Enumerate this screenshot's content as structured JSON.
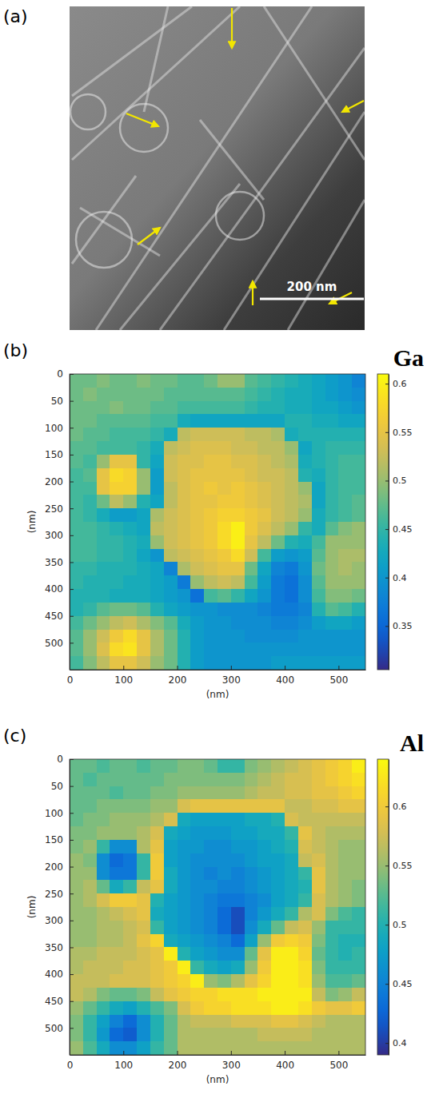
{
  "panel_labels": [
    "(a)",
    "(b)",
    "(c)"
  ],
  "image": {
    "scale_bar": "200 nm"
  },
  "chart_data": [
    {
      "type": "heatmap",
      "title": "Ga",
      "xlabel": "(nm)",
      "ylabel": "(nm)",
      "xlim": [
        0,
        550
      ],
      "ylim": [
        550,
        0
      ],
      "xticks": [
        0,
        100,
        200,
        300,
        400,
        500
      ],
      "yticks": [
        0,
        50,
        100,
        150,
        200,
        250,
        300,
        350,
        400,
        450,
        500
      ],
      "zlim": [
        0.305,
        0.61
      ],
      "zticks": [
        0.35,
        0.4,
        0.45,
        0.5,
        0.55,
        0.6
      ],
      "x": [
        12.5,
        37.5,
        62.5,
        87.5,
        112.5,
        137.5,
        162.5,
        187.5,
        212.5,
        237.5,
        262.5,
        287.5,
        312.5,
        337.5,
        362.5,
        387.5,
        412.5,
        437.5,
        462.5,
        487.5,
        512.5,
        537.5
      ],
      "y": [
        12.5,
        37.5,
        62.5,
        87.5,
        112.5,
        137.5,
        162.5,
        187.5,
        212.5,
        237.5,
        262.5,
        287.5,
        312.5,
        337.5,
        362.5,
        387.5,
        412.5,
        437.5,
        462.5,
        487.5,
        512.5,
        537.5
      ],
      "z": [
        [
          0.48,
          0.48,
          0.49,
          0.48,
          0.48,
          0.49,
          0.48,
          0.48,
          0.47,
          0.47,
          0.48,
          0.5,
          0.5,
          0.47,
          0.46,
          0.45,
          0.44,
          0.43,
          0.42,
          0.41,
          0.4,
          0.38
        ],
        [
          0.48,
          0.49,
          0.48,
          0.48,
          0.48,
          0.48,
          0.48,
          0.47,
          0.47,
          0.47,
          0.47,
          0.47,
          0.47,
          0.46,
          0.45,
          0.44,
          0.43,
          0.43,
          0.42,
          0.41,
          0.4,
          0.39
        ],
        [
          0.48,
          0.48,
          0.48,
          0.49,
          0.48,
          0.48,
          0.47,
          0.47,
          0.46,
          0.46,
          0.46,
          0.46,
          0.46,
          0.45,
          0.44,
          0.44,
          0.43,
          0.43,
          0.42,
          0.42,
          0.41,
          0.4
        ],
        [
          0.48,
          0.48,
          0.47,
          0.47,
          0.47,
          0.47,
          0.46,
          0.46,
          0.43,
          0.42,
          0.42,
          0.42,
          0.42,
          0.42,
          0.42,
          0.42,
          0.44,
          0.44,
          0.43,
          0.43,
          0.42,
          0.42
        ],
        [
          0.48,
          0.47,
          0.47,
          0.46,
          0.46,
          0.46,
          0.45,
          0.43,
          0.52,
          0.53,
          0.53,
          0.53,
          0.53,
          0.52,
          0.52,
          0.51,
          0.43,
          0.44,
          0.44,
          0.44,
          0.44,
          0.44
        ],
        [
          0.47,
          0.47,
          0.46,
          0.46,
          0.46,
          0.45,
          0.43,
          0.52,
          0.53,
          0.54,
          0.54,
          0.54,
          0.53,
          0.53,
          0.52,
          0.52,
          0.5,
          0.42,
          0.44,
          0.45,
          0.45,
          0.45
        ],
        [
          0.47,
          0.46,
          0.5,
          0.55,
          0.55,
          0.45,
          0.42,
          0.53,
          0.54,
          0.54,
          0.55,
          0.55,
          0.54,
          0.54,
          0.53,
          0.52,
          0.51,
          0.43,
          0.44,
          0.45,
          0.46,
          0.46
        ],
        [
          0.46,
          0.47,
          0.55,
          0.58,
          0.57,
          0.5,
          0.41,
          0.53,
          0.54,
          0.55,
          0.55,
          0.55,
          0.55,
          0.54,
          0.53,
          0.53,
          0.52,
          0.44,
          0.43,
          0.45,
          0.46,
          0.46
        ],
        [
          0.46,
          0.46,
          0.55,
          0.57,
          0.57,
          0.5,
          0.41,
          0.52,
          0.54,
          0.55,
          0.56,
          0.55,
          0.56,
          0.55,
          0.54,
          0.53,
          0.52,
          0.5,
          0.42,
          0.45,
          0.46,
          0.46
        ],
        [
          0.46,
          0.45,
          0.48,
          0.52,
          0.5,
          0.44,
          0.42,
          0.52,
          0.54,
          0.55,
          0.55,
          0.56,
          0.56,
          0.55,
          0.54,
          0.53,
          0.52,
          0.51,
          0.42,
          0.45,
          0.46,
          0.47
        ],
        [
          0.46,
          0.45,
          0.43,
          0.41,
          0.41,
          0.42,
          0.51,
          0.53,
          0.54,
          0.55,
          0.56,
          0.57,
          0.57,
          0.56,
          0.55,
          0.53,
          0.52,
          0.5,
          0.43,
          0.45,
          0.46,
          0.47
        ],
        [
          0.46,
          0.46,
          0.45,
          0.44,
          0.43,
          0.42,
          0.52,
          0.53,
          0.54,
          0.55,
          0.56,
          0.58,
          0.6,
          0.56,
          0.54,
          0.52,
          0.5,
          0.45,
          0.43,
          0.47,
          0.49,
          0.5
        ],
        [
          0.46,
          0.46,
          0.45,
          0.45,
          0.44,
          0.43,
          0.5,
          0.53,
          0.54,
          0.55,
          0.56,
          0.58,
          0.6,
          0.55,
          0.52,
          0.48,
          0.44,
          0.43,
          0.46,
          0.5,
          0.5,
          0.5
        ],
        [
          0.46,
          0.46,
          0.45,
          0.45,
          0.44,
          0.42,
          0.4,
          0.52,
          0.53,
          0.54,
          0.55,
          0.56,
          0.58,
          0.53,
          0.46,
          0.41,
          0.4,
          0.41,
          0.47,
          0.5,
          0.51,
          0.51
        ],
        [
          0.45,
          0.45,
          0.44,
          0.44,
          0.44,
          0.43,
          0.42,
          0.38,
          0.51,
          0.53,
          0.54,
          0.55,
          0.55,
          0.48,
          0.42,
          0.38,
          0.37,
          0.4,
          0.48,
          0.5,
          0.51,
          0.5
        ],
        [
          0.45,
          0.44,
          0.44,
          0.44,
          0.43,
          0.43,
          0.42,
          0.41,
          0.37,
          0.5,
          0.52,
          0.53,
          0.52,
          0.46,
          0.41,
          0.37,
          0.36,
          0.39,
          0.47,
          0.5,
          0.5,
          0.5
        ],
        [
          0.44,
          0.44,
          0.44,
          0.43,
          0.43,
          0.43,
          0.42,
          0.41,
          0.4,
          0.36,
          0.46,
          0.47,
          0.45,
          0.42,
          0.4,
          0.37,
          0.36,
          0.39,
          0.46,
          0.49,
          0.49,
          0.48
        ],
        [
          0.44,
          0.45,
          0.47,
          0.48,
          0.48,
          0.47,
          0.44,
          0.42,
          0.41,
          0.4,
          0.4,
          0.39,
          0.39,
          0.39,
          0.38,
          0.37,
          0.37,
          0.38,
          0.44,
          0.47,
          0.46,
          0.44
        ],
        [
          0.46,
          0.48,
          0.5,
          0.52,
          0.53,
          0.51,
          0.49,
          0.47,
          0.43,
          0.41,
          0.4,
          0.4,
          0.39,
          0.39,
          0.39,
          0.38,
          0.38,
          0.39,
          0.41,
          0.42,
          0.42,
          0.41
        ],
        [
          0.47,
          0.5,
          0.53,
          0.56,
          0.58,
          0.55,
          0.51,
          0.48,
          0.44,
          0.41,
          0.4,
          0.4,
          0.4,
          0.39,
          0.39,
          0.39,
          0.39,
          0.4,
          0.4,
          0.4,
          0.4,
          0.4
        ],
        [
          0.47,
          0.5,
          0.54,
          0.58,
          0.59,
          0.55,
          0.51,
          0.48,
          0.44,
          0.41,
          0.4,
          0.4,
          0.4,
          0.4,
          0.4,
          0.4,
          0.4,
          0.4,
          0.4,
          0.4,
          0.4,
          0.4
        ],
        [
          0.46,
          0.49,
          0.52,
          0.55,
          0.55,
          0.53,
          0.5,
          0.48,
          0.44,
          0.41,
          0.4,
          0.4,
          0.4,
          0.4,
          0.4,
          0.41,
          0.41,
          0.41,
          0.41,
          0.41,
          0.41,
          0.41
        ]
      ]
    },
    {
      "type": "heatmap",
      "title": "Al",
      "xlabel": "(nm)",
      "ylabel": "(nm)",
      "xlim": [
        0,
        550
      ],
      "ylim": [
        550,
        0
      ],
      "xticks": [
        0,
        100,
        200,
        300,
        400,
        500
      ],
      "yticks": [
        0,
        50,
        100,
        150,
        200,
        250,
        300,
        350,
        400,
        450,
        500
      ],
      "zlim": [
        0.39,
        0.64
      ],
      "zticks": [
        0.4,
        0.45,
        0.5,
        0.55,
        0.6
      ],
      "x": [
        12.5,
        37.5,
        62.5,
        87.5,
        112.5,
        137.5,
        162.5,
        187.5,
        212.5,
        237.5,
        262.5,
        287.5,
        312.5,
        337.5,
        362.5,
        387.5,
        412.5,
        437.5,
        462.5,
        487.5,
        512.5,
        537.5
      ],
      "y": [
        12.5,
        37.5,
        62.5,
        87.5,
        112.5,
        137.5,
        162.5,
        187.5,
        212.5,
        237.5,
        262.5,
        287.5,
        312.5,
        337.5,
        362.5,
        387.5,
        412.5,
        437.5,
        462.5,
        487.5,
        512.5,
        537.5
      ],
      "z": [
        [
          0.53,
          0.53,
          0.52,
          0.53,
          0.53,
          0.52,
          0.53,
          0.53,
          0.54,
          0.54,
          0.53,
          0.51,
          0.51,
          0.54,
          0.55,
          0.56,
          0.57,
          0.58,
          0.59,
          0.6,
          0.61,
          0.63
        ],
        [
          0.53,
          0.52,
          0.53,
          0.53,
          0.53,
          0.53,
          0.53,
          0.54,
          0.54,
          0.54,
          0.54,
          0.54,
          0.54,
          0.55,
          0.56,
          0.57,
          0.58,
          0.58,
          0.59,
          0.6,
          0.61,
          0.62
        ],
        [
          0.53,
          0.53,
          0.53,
          0.52,
          0.53,
          0.53,
          0.54,
          0.54,
          0.55,
          0.55,
          0.55,
          0.55,
          0.55,
          0.56,
          0.57,
          0.57,
          0.58,
          0.58,
          0.59,
          0.59,
          0.6,
          0.61
        ],
        [
          0.53,
          0.53,
          0.54,
          0.54,
          0.54,
          0.54,
          0.55,
          0.55,
          0.58,
          0.59,
          0.59,
          0.59,
          0.59,
          0.59,
          0.59,
          0.59,
          0.57,
          0.57,
          0.58,
          0.58,
          0.59,
          0.59
        ],
        [
          0.53,
          0.54,
          0.54,
          0.55,
          0.55,
          0.55,
          0.56,
          0.58,
          0.49,
          0.48,
          0.48,
          0.48,
          0.48,
          0.49,
          0.49,
          0.5,
          0.58,
          0.57,
          0.57,
          0.57,
          0.57,
          0.57
        ],
        [
          0.54,
          0.54,
          0.55,
          0.55,
          0.55,
          0.56,
          0.58,
          0.49,
          0.48,
          0.47,
          0.47,
          0.47,
          0.48,
          0.48,
          0.49,
          0.49,
          0.51,
          0.59,
          0.57,
          0.56,
          0.56,
          0.56
        ],
        [
          0.54,
          0.55,
          0.51,
          0.46,
          0.46,
          0.56,
          0.59,
          0.48,
          0.47,
          0.47,
          0.46,
          0.46,
          0.47,
          0.47,
          0.48,
          0.49,
          0.5,
          0.58,
          0.57,
          0.56,
          0.55,
          0.55
        ],
        [
          0.55,
          0.54,
          0.46,
          0.43,
          0.44,
          0.51,
          0.6,
          0.48,
          0.47,
          0.46,
          0.46,
          0.46,
          0.46,
          0.47,
          0.48,
          0.48,
          0.49,
          0.57,
          0.58,
          0.56,
          0.55,
          0.55
        ],
        [
          0.55,
          0.55,
          0.46,
          0.44,
          0.44,
          0.51,
          0.6,
          0.49,
          0.47,
          0.46,
          0.45,
          0.46,
          0.45,
          0.46,
          0.47,
          0.48,
          0.49,
          0.51,
          0.59,
          0.56,
          0.55,
          0.55
        ],
        [
          0.55,
          0.56,
          0.53,
          0.49,
          0.51,
          0.57,
          0.59,
          0.49,
          0.47,
          0.46,
          0.46,
          0.45,
          0.45,
          0.46,
          0.47,
          0.48,
          0.49,
          0.5,
          0.59,
          0.56,
          0.55,
          0.54
        ],
        [
          0.55,
          0.56,
          0.58,
          0.6,
          0.6,
          0.59,
          0.5,
          0.48,
          0.47,
          0.46,
          0.45,
          0.44,
          0.44,
          0.45,
          0.46,
          0.48,
          0.49,
          0.51,
          0.58,
          0.56,
          0.55,
          0.54
        ],
        [
          0.55,
          0.55,
          0.56,
          0.57,
          0.58,
          0.59,
          0.49,
          0.48,
          0.47,
          0.46,
          0.45,
          0.43,
          0.41,
          0.45,
          0.47,
          0.49,
          0.51,
          0.56,
          0.58,
          0.54,
          0.52,
          0.51
        ],
        [
          0.55,
          0.55,
          0.56,
          0.56,
          0.57,
          0.58,
          0.51,
          0.48,
          0.47,
          0.46,
          0.45,
          0.43,
          0.41,
          0.46,
          0.49,
          0.53,
          0.57,
          0.58,
          0.55,
          0.51,
          0.51,
          0.51
        ],
        [
          0.55,
          0.55,
          0.56,
          0.56,
          0.57,
          0.59,
          0.61,
          0.49,
          0.48,
          0.47,
          0.46,
          0.45,
          0.43,
          0.48,
          0.55,
          0.6,
          0.61,
          0.6,
          0.54,
          0.51,
          0.5,
          0.5
        ],
        [
          0.56,
          0.56,
          0.57,
          0.57,
          0.57,
          0.58,
          0.59,
          0.63,
          0.5,
          0.48,
          0.47,
          0.46,
          0.46,
          0.53,
          0.59,
          0.63,
          0.63,
          0.61,
          0.53,
          0.51,
          0.5,
          0.51
        ],
        [
          0.56,
          0.57,
          0.57,
          0.57,
          0.58,
          0.58,
          0.59,
          0.6,
          0.63,
          0.51,
          0.49,
          0.48,
          0.49,
          0.55,
          0.6,
          0.63,
          0.63,
          0.62,
          0.54,
          0.51,
          0.51,
          0.51
        ],
        [
          0.57,
          0.57,
          0.57,
          0.58,
          0.58,
          0.58,
          0.59,
          0.6,
          0.61,
          0.63,
          0.55,
          0.54,
          0.56,
          0.59,
          0.61,
          0.63,
          0.63,
          0.62,
          0.55,
          0.52,
          0.52,
          0.53
        ],
        [
          0.57,
          0.56,
          0.54,
          0.53,
          0.53,
          0.54,
          0.57,
          0.59,
          0.6,
          0.61,
          0.61,
          0.62,
          0.62,
          0.62,
          0.63,
          0.63,
          0.63,
          0.63,
          0.57,
          0.54,
          0.55,
          0.57
        ],
        [
          0.55,
          0.53,
          0.51,
          0.49,
          0.48,
          0.5,
          0.52,
          0.54,
          0.58,
          0.6,
          0.61,
          0.61,
          0.62,
          0.62,
          0.62,
          0.63,
          0.63,
          0.62,
          0.6,
          0.59,
          0.59,
          0.6
        ],
        [
          0.54,
          0.51,
          0.48,
          0.45,
          0.43,
          0.46,
          0.5,
          0.53,
          0.56,
          0.57,
          0.57,
          0.57,
          0.58,
          0.58,
          0.58,
          0.59,
          0.59,
          0.58,
          0.57,
          0.56,
          0.56,
          0.56
        ],
        [
          0.54,
          0.51,
          0.47,
          0.43,
          0.42,
          0.46,
          0.5,
          0.53,
          0.56,
          0.56,
          0.56,
          0.56,
          0.56,
          0.56,
          0.57,
          0.57,
          0.57,
          0.57,
          0.56,
          0.56,
          0.56,
          0.56
        ],
        [
          0.55,
          0.52,
          0.49,
          0.46,
          0.46,
          0.48,
          0.51,
          0.53,
          0.56,
          0.56,
          0.56,
          0.56,
          0.56,
          0.56,
          0.56,
          0.56,
          0.56,
          0.56,
          0.56,
          0.56,
          0.56,
          0.56
        ]
      ]
    }
  ]
}
